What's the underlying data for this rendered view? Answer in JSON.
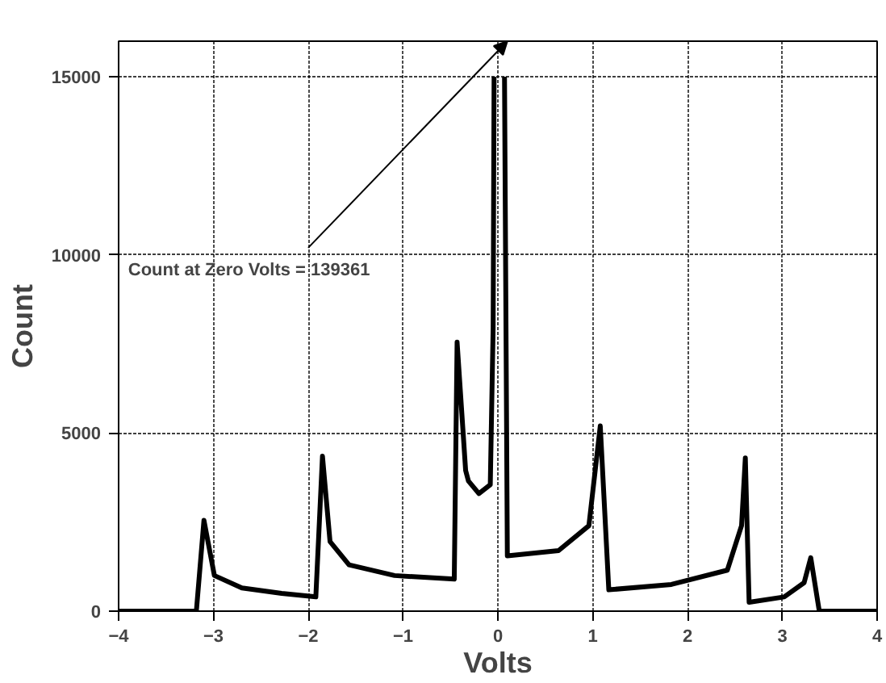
{
  "chart_data": {
    "type": "line",
    "xlabel": "Volts",
    "ylabel": "Count",
    "annotations": [
      "Count at Zero Volts = 139361"
    ],
    "x": [
      -4,
      -3.18,
      -3.1,
      -2.99,
      -2.7,
      -2.28,
      -1.92,
      -1.85,
      -1.77,
      -1.57,
      -1.09,
      -0.46,
      -0.43,
      -0.34,
      -0.31,
      -0.2,
      -0.08,
      -0.05,
      -0.04,
      0,
      0.07,
      0.1,
      0.64,
      0.96,
      1.08,
      1.17,
      1.83,
      2.42,
      2.57,
      2.61,
      2.65,
      3.02,
      3.23,
      3.3,
      3.39,
      4
    ],
    "series": [
      {
        "color": "#000000",
        "values": [
          0,
          0,
          2550,
          1000,
          650,
          500,
          400,
          4350,
          1950,
          1300,
          1000,
          900,
          7550,
          3950,
          3650,
          3300,
          3550,
          7950,
          15000,
          null,
          15000,
          1550,
          1700,
          2400,
          5200,
          600,
          750,
          1150,
          2400,
          4300,
          250,
          400,
          800,
          1500,
          0,
          0
        ]
      }
    ],
    "xlim": [
      -4,
      4
    ],
    "ylim": [
      0,
      16000
    ],
    "xticks": [
      -4,
      -3,
      -2,
      -1,
      0,
      1,
      2,
      3,
      4
    ],
    "yticks": [
      0,
      5000,
      10000,
      15000
    ],
    "grid": true,
    "marker": "none",
    "line_style": "solid"
  }
}
